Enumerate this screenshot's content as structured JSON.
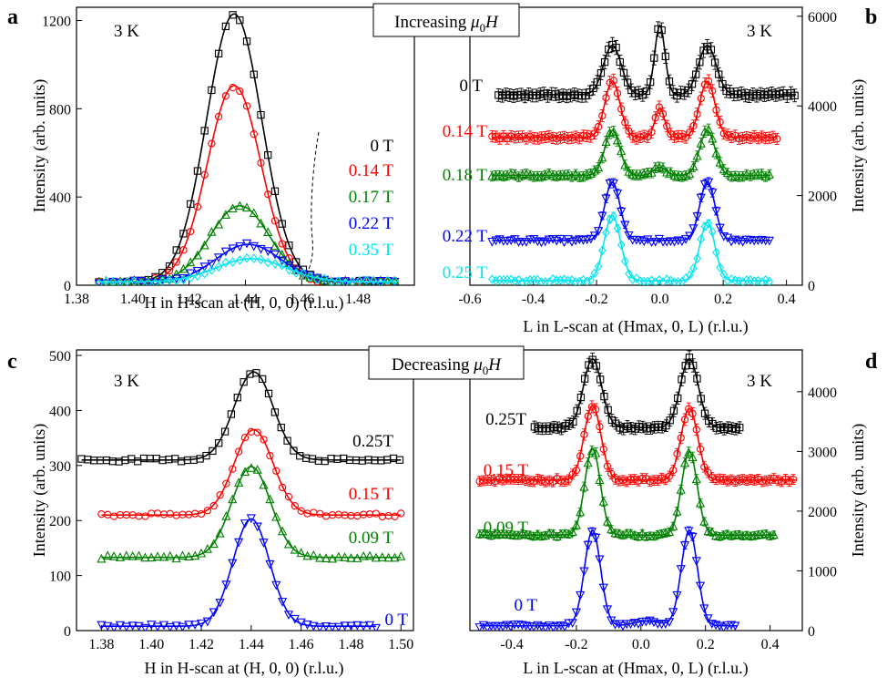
{
  "figure": {
    "panel_letters": [
      "a",
      "b",
      "c",
      "d"
    ],
    "temperature_label": "3 K",
    "field_label_increasing": "Increasing μ0H",
    "field_label_decreasing": "Decreasing μ0H",
    "colors": {
      "black": "#000000",
      "red": "#ff0000",
      "green": "#008000",
      "blue": "#0000ff",
      "cyan": "#00e5ee"
    }
  },
  "chart_data": [
    {
      "panel": "a",
      "type": "line",
      "xlabel": "H in H-scan at (H, 0, 0) (r.l.u.)",
      "ylabel": "Intensity (arb. units)",
      "xlim": [
        1.38,
        1.5
      ],
      "ylim": [
        0,
        1260
      ],
      "xticks": [
        1.38,
        1.4,
        1.42,
        1.44,
        1.46,
        1.48
      ],
      "yticks": [
        0,
        400,
        800,
        1200
      ],
      "ytick_side": "left",
      "series": [
        {
          "name": "0 T",
          "color": "#000000",
          "marker": "square",
          "background": 15,
          "amplitude": 1215,
          "center": 1.436,
          "width": 0.0098,
          "x_range": [
            1.388,
            1.494
          ]
        },
        {
          "name": "0.14 T",
          "color": "#ff0000",
          "marker": "circle",
          "background": 15,
          "amplitude": 890,
          "center": 1.436,
          "width": 0.0095,
          "x_range": [
            1.388,
            1.494
          ]
        },
        {
          "name": "0.17 T",
          "color": "#008000",
          "marker": "triangle-up",
          "background": 15,
          "amplitude": 345,
          "center": 1.438,
          "width": 0.0105,
          "x_range": [
            1.388,
            1.494
          ]
        },
        {
          "name": "0.22 T",
          "color": "#0000ff",
          "marker": "triangle-down",
          "background": 15,
          "amplitude": 170,
          "center": 1.441,
          "width": 0.0115,
          "x_range": [
            1.388,
            1.494
          ]
        },
        {
          "name": "0.35 T",
          "color": "#00e5ee",
          "marker": "diamond",
          "background": 15,
          "amplitude": 105,
          "center": 1.442,
          "width": 0.0125,
          "x_range": [
            1.388,
            1.494
          ]
        }
      ]
    },
    {
      "panel": "b",
      "type": "line",
      "xlabel": "L in L-scan at (Hmax, 0, L) (r.l.u.)",
      "ylabel": "Intensity (arb. units)",
      "xlim": [
        -0.6,
        0.45
      ],
      "ylim": [
        0,
        6200
      ],
      "xticks": [
        -0.6,
        -0.4,
        -0.2,
        0.0,
        0.2,
        0.4
      ],
      "yticks": [
        0,
        2000,
        4000,
        6000
      ],
      "ytick_side": "right",
      "series": [
        {
          "name": "0 T",
          "color": "#000000",
          "marker": "square",
          "background": 4250,
          "peaks": [
            {
              "center": -0.15,
              "amplitude": 1100,
              "width": 0.028
            },
            {
              "center": 0.15,
              "amplitude": 1100,
              "width": 0.028
            },
            {
              "center": 0.0,
              "amplitude": 1550,
              "width": 0.016
            }
          ],
          "x_range": [
            -0.51,
            0.43
          ]
        },
        {
          "name": "0.14 T",
          "color": "#ff0000",
          "marker": "circle",
          "background": 3300,
          "peaks": [
            {
              "center": -0.15,
              "amplitude": 1250,
              "width": 0.024
            },
            {
              "center": 0.15,
              "amplitude": 1250,
              "width": 0.024
            },
            {
              "center": 0.0,
              "amplitude": 650,
              "width": 0.015
            }
          ],
          "x_range": [
            -0.53,
            0.37
          ]
        },
        {
          "name": "0.18 T",
          "color": "#008000",
          "marker": "triangle-up",
          "background": 2450,
          "peaks": [
            {
              "center": -0.15,
              "amplitude": 1000,
              "width": 0.024
            },
            {
              "center": 0.15,
              "amplitude": 1000,
              "width": 0.024
            },
            {
              "center": 0.0,
              "amplitude": 180,
              "width": 0.02
            }
          ],
          "x_range": [
            -0.53,
            0.35
          ]
        },
        {
          "name": "0.22 T",
          "color": "#0000ff",
          "marker": "triangle-down",
          "background": 1000,
          "peaks": [
            {
              "center": -0.15,
              "amplitude": 1300,
              "width": 0.024
            },
            {
              "center": 0.15,
              "amplitude": 1300,
              "width": 0.024
            }
          ],
          "x_range": [
            -0.53,
            0.35
          ]
        },
        {
          "name": "0.25 T",
          "color": "#00e5ee",
          "marker": "diamond",
          "background": 100,
          "peaks": [
            {
              "center": -0.15,
              "amplitude": 1450,
              "width": 0.026
            },
            {
              "center": 0.15,
              "amplitude": 1300,
              "width": 0.024
            }
          ],
          "x_range": [
            -0.53,
            0.35
          ]
        }
      ]
    },
    {
      "panel": "c",
      "type": "line",
      "xlabel": "H in H-scan at (H, 0, 0) (r.l.u.)",
      "ylabel": "Intensity (arb. units)",
      "xlim": [
        1.37,
        1.505
      ],
      "ylim": [
        0,
        510
      ],
      "xticks": [
        1.38,
        1.4,
        1.42,
        1.44,
        1.46,
        1.48,
        1.5
      ],
      "yticks": [
        0,
        100,
        200,
        300,
        400,
        500
      ],
      "ytick_side": "left",
      "series": [
        {
          "name": "0.25T",
          "color": "#000000",
          "marker": "square",
          "background": 310,
          "amplitude": 160,
          "center": 1.441,
          "width": 0.0078,
          "x_range": [
            1.372,
            1.5
          ]
        },
        {
          "name": "0.15 T",
          "color": "#ff0000",
          "marker": "circle",
          "background": 210,
          "amplitude": 155,
          "center": 1.441,
          "width": 0.0078,
          "x_range": [
            1.38,
            1.5
          ]
        },
        {
          "name": "0.09 T",
          "color": "#008000",
          "marker": "triangle-up",
          "background": 133,
          "amplitude": 165,
          "center": 1.44,
          "width": 0.0078,
          "x_range": [
            1.38,
            1.5
          ]
        },
        {
          "name": "0 T",
          "color": "#0000ff",
          "marker": "triangle-down",
          "background": 8,
          "amplitude": 195,
          "center": 1.44,
          "width": 0.0073,
          "x_range": [
            1.38,
            1.49
          ]
        }
      ]
    },
    {
      "panel": "d",
      "type": "line",
      "xlabel": "L in L-scan at (Hmax, 0, L) (r.l.u.)",
      "ylabel": "Intensity (arb. units)",
      "xlim": [
        -0.53,
        0.5
      ],
      "ylim": [
        0,
        4700
      ],
      "xticks": [
        -0.4,
        -0.2,
        0.0,
        0.2,
        0.4
      ],
      "yticks": [
        0,
        1000,
        2000,
        3000,
        4000
      ],
      "ytick_side": "right",
      "series": [
        {
          "name": "0.25T",
          "color": "#000000",
          "marker": "square",
          "background": 3400,
          "peaks": [
            {
              "center": -0.15,
              "amplitude": 1150,
              "width": 0.028
            },
            {
              "center": 0.15,
              "amplitude": 1150,
              "width": 0.028
            }
          ],
          "x_range": [
            -0.33,
            0.31
          ]
        },
        {
          "name": "0.15 T",
          "color": "#ff0000",
          "marker": "circle",
          "background": 2520,
          "peaks": [
            {
              "center": -0.15,
              "amplitude": 1250,
              "width": 0.026
            },
            {
              "center": 0.15,
              "amplitude": 1200,
              "width": 0.026
            }
          ],
          "x_range": [
            -0.5,
            0.48
          ]
        },
        {
          "name": "0.09 T",
          "color": "#008000",
          "marker": "triangle-up",
          "background": 1600,
          "peaks": [
            {
              "center": -0.15,
              "amplitude": 1450,
              "width": 0.024
            },
            {
              "center": 0.15,
              "amplitude": 1400,
              "width": 0.024
            }
          ],
          "x_range": [
            -0.5,
            0.42
          ]
        },
        {
          "name": "0 T",
          "color": "#0000ff",
          "marker": "triangle-down",
          "background": 80,
          "peaks": [
            {
              "center": -0.15,
              "amplitude": 1600,
              "width": 0.025
            },
            {
              "center": 0.15,
              "amplitude": 1600,
              "width": 0.025
            },
            {
              "center": 0.02,
              "amplitude": 80,
              "width": 0.04
            }
          ],
          "x_range": [
            -0.5,
            0.3
          ]
        }
      ]
    }
  ]
}
